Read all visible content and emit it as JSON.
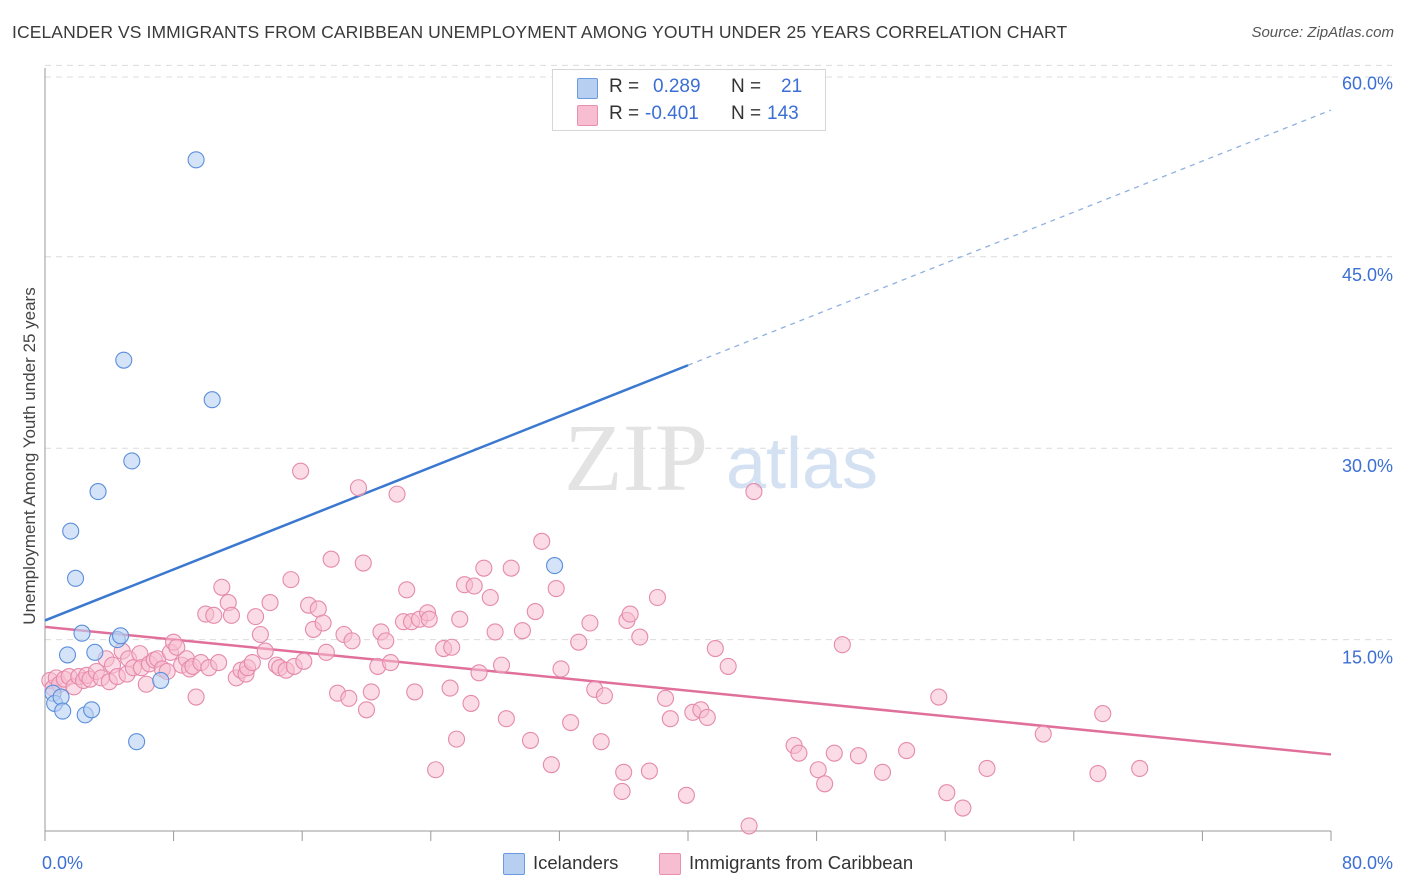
{
  "title": "ICELANDER VS IMMIGRANTS FROM CARIBBEAN UNEMPLOYMENT AMONG YOUTH UNDER 25 YEARS CORRELATION CHART",
  "source": "Source: ZipAtlas.com",
  "watermark": {
    "zip": "ZIP",
    "atlas": "atlas"
  },
  "colors": {
    "blue": "#3b78d0",
    "blue_fill": "#b7d0f2",
    "pink": "#e0709a",
    "pink_fill": "#f7bdd0",
    "axis_text": "#3b6fd4",
    "grid": "#dcdcdc"
  },
  "legend": {
    "r_label": "R =",
    "n_label": "N =",
    "rows": [
      {
        "name": "Icelanders",
        "r": "0.289",
        "n": "21"
      },
      {
        "name": "Immigrants from Caribbean",
        "r": "-0.401",
        "n": "143"
      }
    ]
  },
  "chart_data": {
    "type": "scatter",
    "xlabel": "",
    "ylabel": "Unemployment Among Youth under 25 years",
    "xlim": [
      0,
      80
    ],
    "ylim": [
      0,
      60
    ],
    "x_tick_labels": [
      "0.0%",
      "80.0%"
    ],
    "y_tick_labels": [
      "15.0%",
      "30.0%",
      "45.0%",
      "60.0%"
    ],
    "y_ticks": [
      15,
      30,
      45,
      60
    ],
    "series": [
      {
        "name": "Icelanders",
        "r": 0.289,
        "n": 21,
        "trend": {
          "x0": 0,
          "y0": 16.5,
          "x1": 40,
          "y1": 36.5,
          "dashed_to_x": 80,
          "dashed_to_y": 56.5
        },
        "points": [
          [
            0.5,
            10.8
          ],
          [
            0.6,
            10.0
          ],
          [
            1.0,
            10.5
          ],
          [
            1.1,
            9.4
          ],
          [
            1.4,
            13.8
          ],
          [
            1.6,
            23.5
          ],
          [
            1.9,
            19.8
          ],
          [
            2.3,
            15.5
          ],
          [
            2.5,
            9.1
          ],
          [
            2.9,
            9.5
          ],
          [
            3.1,
            14.0
          ],
          [
            3.3,
            26.6
          ],
          [
            4.5,
            15.0
          ],
          [
            4.7,
            15.3
          ],
          [
            4.9,
            36.9
          ],
          [
            5.4,
            29.0
          ],
          [
            5.7,
            7.0
          ],
          [
            7.2,
            11.8
          ],
          [
            9.4,
            52.6
          ],
          [
            10.4,
            33.8
          ],
          [
            31.7,
            20.8
          ]
        ]
      },
      {
        "name": "Immigrants from Caribbean",
        "r": -0.401,
        "n": 143,
        "trend": {
          "x0": 0,
          "y0": 16.0,
          "x1": 80,
          "y1": 6.0
        },
        "points": [
          [
            0.3,
            11.8
          ],
          [
            0.5,
            11.2
          ],
          [
            0.7,
            12.0
          ],
          [
            0.9,
            11.5
          ],
          [
            1.2,
            11.9
          ],
          [
            1.5,
            12.1
          ],
          [
            1.8,
            11.3
          ],
          [
            2.1,
            12.1
          ],
          [
            2.4,
            11.8
          ],
          [
            2.6,
            12.2
          ],
          [
            2.8,
            11.9
          ],
          [
            3.2,
            12.5
          ],
          [
            3.5,
            12.0
          ],
          [
            3.8,
            13.5
          ],
          [
            4.0,
            11.7
          ],
          [
            4.2,
            13.0
          ],
          [
            4.5,
            12.1
          ],
          [
            4.8,
            14.1
          ],
          [
            5.1,
            12.3
          ],
          [
            5.2,
            13.5
          ],
          [
            5.5,
            12.8
          ],
          [
            5.9,
            13.9
          ],
          [
            6.0,
            12.8
          ],
          [
            6.3,
            11.5
          ],
          [
            6.5,
            13.1
          ],
          [
            6.8,
            13.4
          ],
          [
            7.0,
            13.5
          ],
          [
            7.3,
            12.7
          ],
          [
            7.6,
            12.5
          ],
          [
            7.8,
            14.0
          ],
          [
            8.0,
            14.8
          ],
          [
            8.2,
            14.4
          ],
          [
            8.5,
            13.0
          ],
          [
            8.8,
            13.5
          ],
          [
            9.0,
            12.7
          ],
          [
            9.2,
            12.9
          ],
          [
            9.4,
            10.5
          ],
          [
            9.7,
            13.2
          ],
          [
            10.0,
            17.0
          ],
          [
            10.2,
            12.8
          ],
          [
            10.5,
            16.9
          ],
          [
            10.8,
            13.2
          ],
          [
            11.0,
            19.1
          ],
          [
            11.4,
            17.9
          ],
          [
            11.6,
            16.9
          ],
          [
            11.9,
            12.0
          ],
          [
            12.2,
            12.6
          ],
          [
            12.5,
            12.3
          ],
          [
            12.6,
            12.8
          ],
          [
            12.9,
            13.2
          ],
          [
            13.1,
            16.8
          ],
          [
            13.4,
            15.4
          ],
          [
            13.7,
            14.1
          ],
          [
            14.0,
            17.9
          ],
          [
            14.4,
            13.0
          ],
          [
            14.6,
            12.8
          ],
          [
            15.0,
            12.6
          ],
          [
            15.3,
            19.7
          ],
          [
            15.5,
            12.9
          ],
          [
            15.9,
            28.2
          ],
          [
            16.1,
            13.3
          ],
          [
            16.4,
            17.7
          ],
          [
            16.7,
            15.8
          ],
          [
            17.0,
            17.4
          ],
          [
            17.3,
            16.3
          ],
          [
            17.5,
            14.0
          ],
          [
            17.8,
            21.3
          ],
          [
            18.2,
            10.8
          ],
          [
            18.6,
            15.4
          ],
          [
            18.9,
            10.4
          ],
          [
            19.1,
            14.9
          ],
          [
            19.5,
            26.9
          ],
          [
            19.8,
            21.0
          ],
          [
            20.0,
            9.5
          ],
          [
            20.3,
            10.9
          ],
          [
            20.7,
            12.9
          ],
          [
            20.9,
            15.6
          ],
          [
            21.2,
            14.9
          ],
          [
            21.5,
            13.2
          ],
          [
            21.9,
            26.4
          ],
          [
            22.3,
            16.4
          ],
          [
            22.5,
            18.9
          ],
          [
            22.8,
            16.4
          ],
          [
            23.0,
            10.9
          ],
          [
            23.3,
            16.6
          ],
          [
            23.8,
            17.1
          ],
          [
            23.9,
            16.6
          ],
          [
            24.3,
            4.8
          ],
          [
            24.8,
            14.3
          ],
          [
            25.2,
            11.2
          ],
          [
            25.3,
            14.4
          ],
          [
            25.6,
            7.2
          ],
          [
            25.8,
            16.6
          ],
          [
            26.1,
            19.3
          ],
          [
            26.5,
            10.0
          ],
          [
            26.7,
            19.2
          ],
          [
            27.0,
            12.4
          ],
          [
            27.3,
            20.6
          ],
          [
            27.7,
            18.3
          ],
          [
            28.0,
            15.6
          ],
          [
            28.4,
            13.0
          ],
          [
            28.7,
            8.8
          ],
          [
            29.0,
            20.6
          ],
          [
            29.7,
            15.7
          ],
          [
            30.2,
            7.1
          ],
          [
            30.5,
            17.2
          ],
          [
            30.9,
            22.7
          ],
          [
            31.5,
            5.2
          ],
          [
            31.8,
            19.0
          ],
          [
            32.1,
            12.7
          ],
          [
            32.7,
            8.5
          ],
          [
            33.2,
            14.8
          ],
          [
            33.9,
            16.3
          ],
          [
            34.2,
            11.1
          ],
          [
            34.6,
            7.0
          ],
          [
            34.8,
            10.6
          ],
          [
            35.9,
            3.1
          ],
          [
            36.0,
            4.6
          ],
          [
            36.2,
            16.5
          ],
          [
            36.4,
            17.0
          ],
          [
            37.0,
            15.2
          ],
          [
            37.6,
            4.7
          ],
          [
            38.1,
            18.3
          ],
          [
            38.6,
            10.4
          ],
          [
            38.9,
            8.8
          ],
          [
            39.9,
            2.8
          ],
          [
            40.3,
            9.3
          ],
          [
            40.8,
            9.5
          ],
          [
            41.2,
            8.9
          ],
          [
            41.7,
            14.3
          ],
          [
            42.5,
            12.9
          ],
          [
            43.8,
            0.4
          ],
          [
            44.1,
            26.6
          ],
          [
            46.6,
            6.7
          ],
          [
            46.9,
            6.1
          ],
          [
            48.1,
            4.8
          ],
          [
            48.5,
            3.7
          ],
          [
            49.1,
            6.1
          ],
          [
            49.6,
            14.6
          ],
          [
            50.6,
            5.9
          ],
          [
            52.1,
            4.6
          ],
          [
            53.6,
            6.3
          ],
          [
            55.6,
            10.5
          ],
          [
            56.1,
            3.0
          ],
          [
            57.1,
            1.8
          ],
          [
            58.6,
            4.9
          ],
          [
            62.1,
            7.6
          ],
          [
            65.5,
            4.5
          ],
          [
            65.8,
            9.2
          ],
          [
            68.1,
            4.9
          ]
        ]
      }
    ]
  },
  "bottom_legend": [
    "Icelanders",
    "Immigrants from Caribbean"
  ]
}
